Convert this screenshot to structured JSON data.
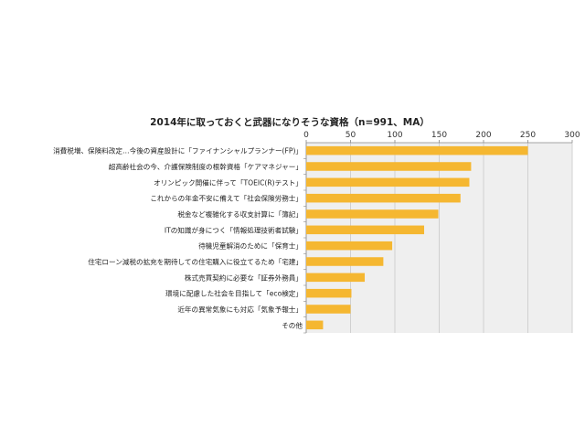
{
  "chart_data": {
    "type": "bar",
    "orientation": "horizontal",
    "title": "2014年に取っておくと武器になりそうな資格（n=991、MA）",
    "categories": [
      "消費税増、保険料改定…今後の資産設計に「ファイナンシャルプランナー(FP)」",
      "超高齢社会の今、介護保険制度の根幹資格「ケアマネジャー」",
      "オリンピック開催に伴って「TOEIC(R)テスト」",
      "これからの年金不安に備えて「社会保険労務士」",
      "税金など複雑化する収支計算に「簿記」",
      "ITの知識が身につく「情報処理技術者試験」",
      "待機児童解消のために「保育士」",
      "住宅ローン減税の拡充を期待しての住宅購入に役立てるため「宅建」",
      "株式売買契約に必要な「証券外務員」",
      "環境に配慮した社会を目指して「eco検定」",
      "近年の異常気象にも対応「気象予報士」",
      "その他"
    ],
    "values": [
      250,
      186,
      184,
      174,
      149,
      133,
      97,
      87,
      66,
      51,
      50,
      19
    ],
    "xlim": [
      0,
      300
    ],
    "ticks": [
      0,
      50,
      100,
      150,
      200,
      250,
      300
    ],
    "axis_position": "top",
    "grid": true,
    "bar_color": "#F5B731",
    "plot_bg": "#EFEFEF"
  }
}
